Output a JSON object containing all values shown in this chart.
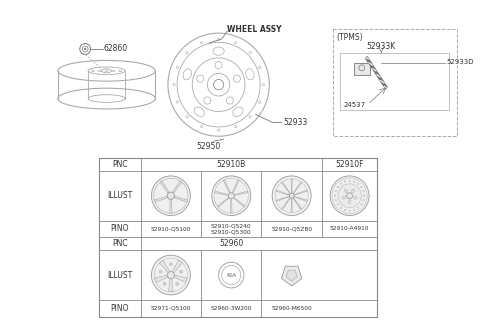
{
  "bg_color": "#ffffff",
  "line_color": "#aaaaaa",
  "dark_line": "#777777",
  "text_color": "#333333",
  "table_line": "#888888",
  "row1_pno": [
    "52910-Q5100",
    "52910-Q5240\n52910-Q5300",
    "52910-Q5ZB0",
    "52910-A4910"
  ],
  "row2_pno": [
    "52971-Q5100",
    "52960-3W200",
    "52960-M6500"
  ],
  "tpms_labels": [
    "(TPMS)",
    "52933K",
    "52933D",
    "24537"
  ],
  "part_labels": [
    "62860",
    "52933",
    "52950"
  ],
  "wheel_label": "WHEEL ASSY"
}
